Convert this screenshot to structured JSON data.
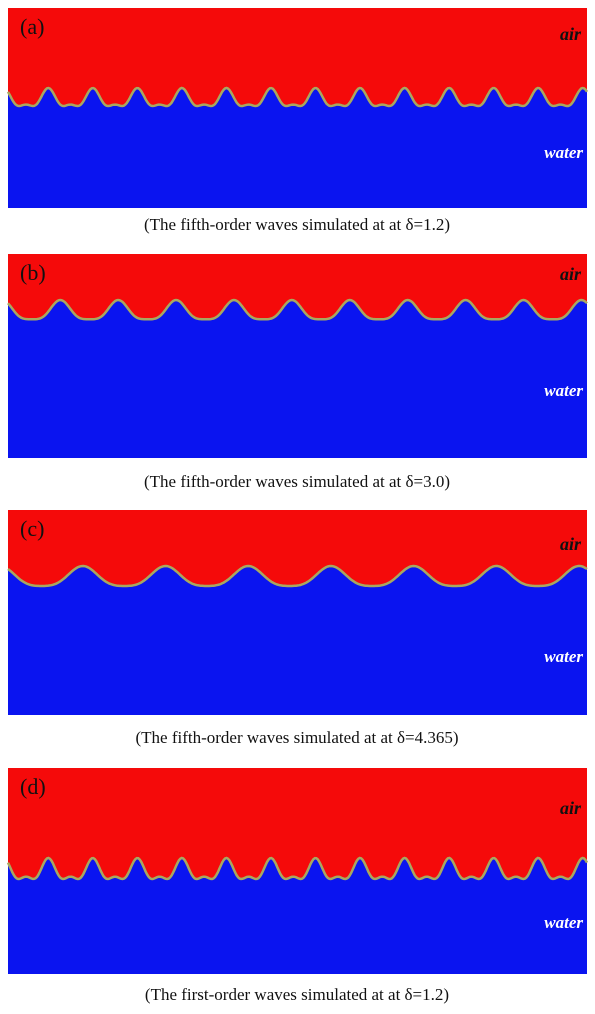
{
  "panels": [
    {
      "label": "(a)",
      "air": "air",
      "water": "water",
      "caption": "(The fifth-order  waves  simulated  at at δ=1.2)"
    },
    {
      "label": "(b)",
      "air": "air",
      "water": "water",
      "caption": "(The fifth-order  waves  simulated  at at δ=3.0)"
    },
    {
      "label": "(c)",
      "air": "air",
      "water": "water",
      "caption": "(The fifth-order  waves  simulated  at at δ=4.365)"
    },
    {
      "label": "(d)",
      "air": "air",
      "water": "water",
      "caption": "(The first-order  waves  simulated  at at δ=1.2)"
    }
  ]
}
